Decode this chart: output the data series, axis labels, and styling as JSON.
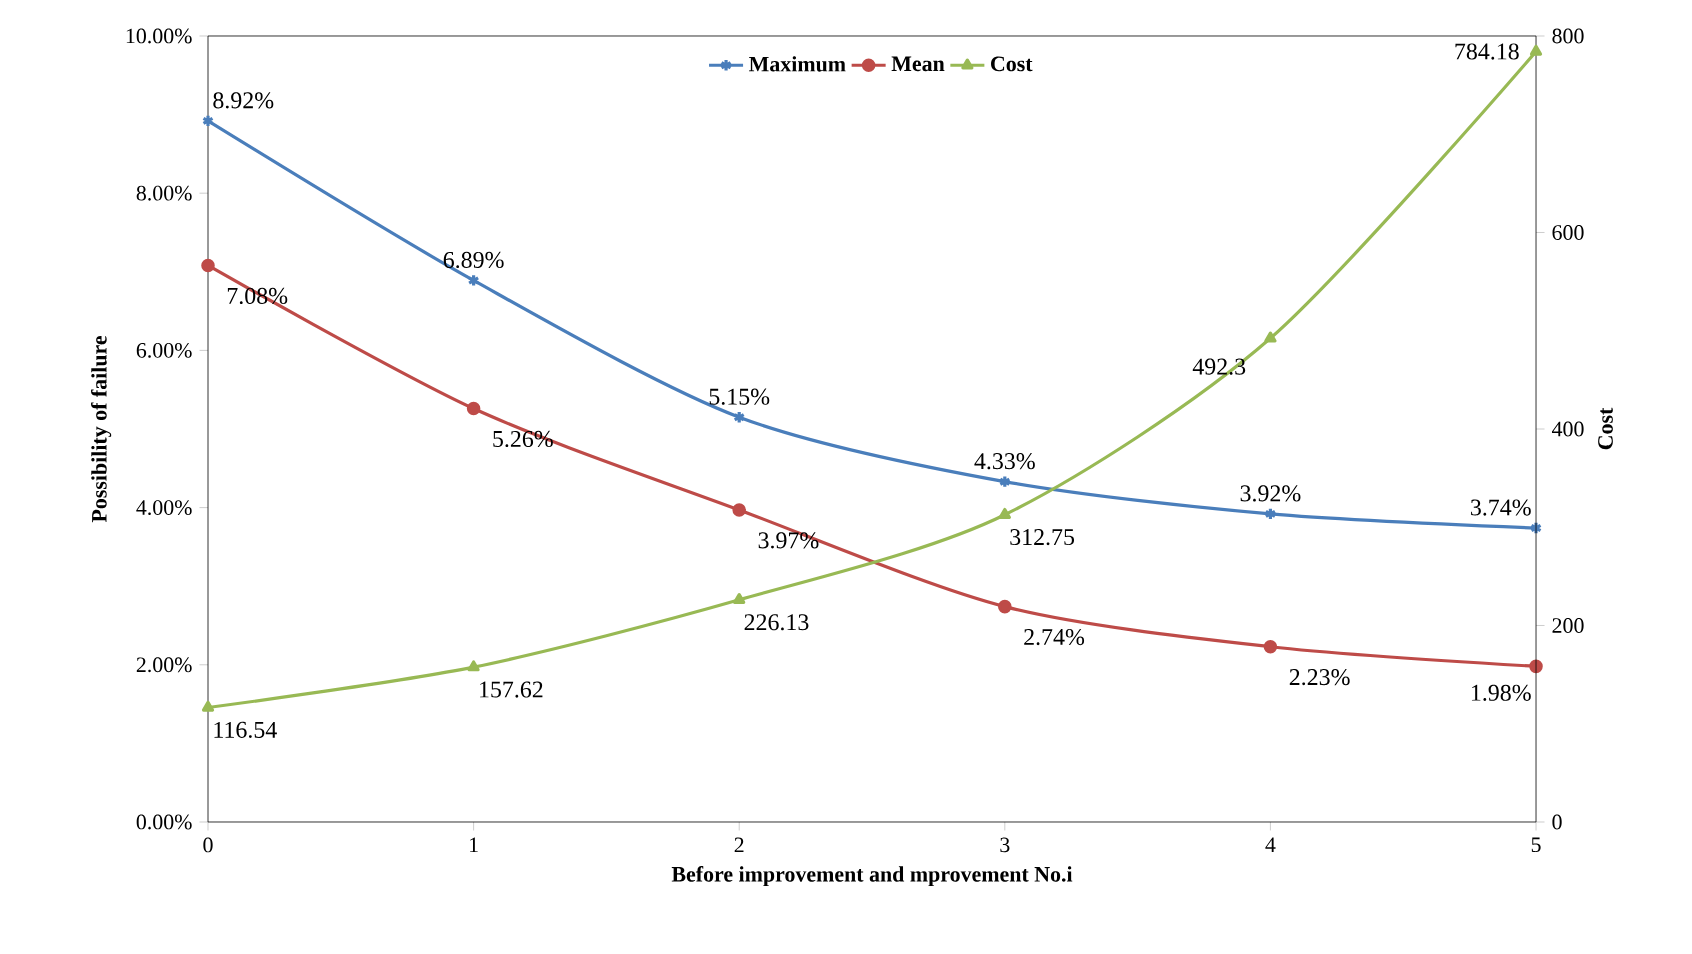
{
  "chart_data": {
    "type": "line",
    "xlabel": "Before improvement and mprovement No.i",
    "ylabel": "Possibility of failure",
    "y2label": "Cost",
    "x": [
      0,
      1,
      2,
      3,
      4,
      5
    ],
    "series": [
      {
        "name": "Maximum",
        "color": "#4a7ebb",
        "marker": "cross",
        "values": [
          8.92,
          6.89,
          5.15,
          4.33,
          3.92,
          3.74
        ],
        "value_labels": [
          "8.92%",
          "6.89%",
          "5.15%",
          "4.33%",
          "3.92%",
          "3.74%"
        ]
      },
      {
        "name": "Mean",
        "color": "#be4b48",
        "marker": "circle",
        "values": [
          7.08,
          5.26,
          3.97,
          2.74,
          2.23,
          1.98
        ],
        "value_labels": [
          "7.08%",
          "5.26%",
          "3.97%",
          "2.74%",
          "2.23%",
          "1.98%"
        ]
      },
      {
        "name": "Cost",
        "color": "#98b954",
        "marker": "triangle",
        "axis": "y2",
        "values": [
          116.54,
          157.62,
          226.13,
          312.75,
          492.3,
          784.18
        ],
        "value_labels": [
          "116.54",
          "157.62",
          "226.13",
          "312.75",
          "492.3",
          "784.18"
        ]
      }
    ],
    "xlim": [
      0,
      5
    ],
    "xticks": [
      0,
      1,
      2,
      3,
      4,
      5
    ],
    "ylim": [
      0,
      10
    ],
    "yticks": [
      {
        "value": 0,
        "label": "0.00%"
      },
      {
        "value": 2,
        "label": "2.00%"
      },
      {
        "value": 4,
        "label": "4.00%"
      },
      {
        "value": 6,
        "label": "6.00%"
      },
      {
        "value": 8,
        "label": "8.00%"
      },
      {
        "value": 10,
        "label": "10.00%"
      }
    ],
    "y2lim": [
      0,
      800
    ],
    "y2ticks": [
      0,
      200,
      400,
      600,
      800
    ],
    "legend": "top",
    "grid": false,
    "line_style": "solid"
  }
}
